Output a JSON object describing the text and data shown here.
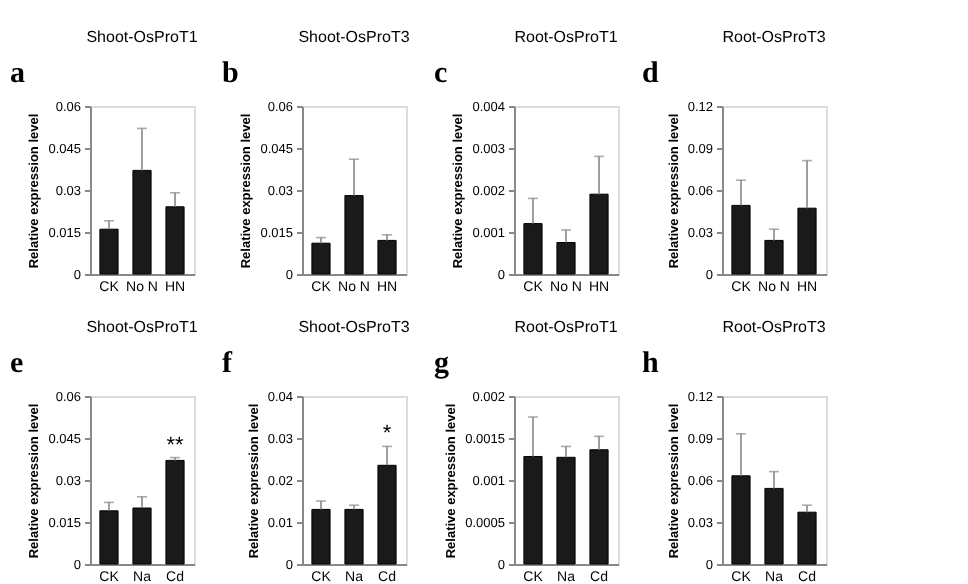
{
  "chart_data": [
    {
      "type": "bar",
      "title": "Shoot-OsProT1",
      "ylabel": "Relative expression level",
      "annotations": [
        "a"
      ],
      "categories": [
        "CK",
        "No N",
        "HN"
      ],
      "values": [
        0.016,
        0.037,
        0.024
      ],
      "errors": [
        [
          0.016,
          0.019
        ],
        [
          0.037,
          0.052
        ],
        [
          0.024,
          0.029
        ]
      ],
      "color": "#1a1a1a",
      "ylim": [
        0,
        0.06
      ],
      "yticks": [
        0,
        0.015,
        0.03,
        0.045,
        0.06
      ],
      "grid": false
    },
    {
      "type": "bar",
      "title": "Shoot-OsProT3",
      "ylabel": "Relative expression level",
      "annotations": [
        "b"
      ],
      "categories": [
        "CK",
        "No N",
        "HN"
      ],
      "values": [
        0.011,
        0.028,
        0.012
      ],
      "errors": [
        [
          0.011,
          0.013
        ],
        [
          0.028,
          0.041
        ],
        [
          0.012,
          0.014
        ]
      ],
      "color": "#1a1a1a",
      "ylim": [
        0,
        0.06
      ],
      "yticks": [
        0,
        0.015,
        0.03,
        0.045,
        0.06
      ],
      "grid": false
    },
    {
      "type": "bar",
      "title": "Root-OsProT1",
      "ylabel": "Relative expression level",
      "annotations": [
        "c"
      ],
      "categories": [
        "CK",
        "No N",
        "HN"
      ],
      "values": [
        0.0012,
        0.00075,
        0.0019
      ],
      "errors": [
        [
          0.0012,
          0.0018
        ],
        [
          0.00075,
          0.00105
        ],
        [
          0.0019,
          0.0028
        ]
      ],
      "color": "#1a1a1a",
      "ylim": [
        0,
        0.004
      ],
      "yticks": [
        0,
        0.001,
        0.002,
        0.003,
        0.004
      ],
      "grid": false
    },
    {
      "type": "bar",
      "title": "Root-OsProT3",
      "ylabel": "Relative expression level",
      "annotations": [
        "d"
      ],
      "categories": [
        "CK",
        "No N",
        "HN"
      ],
      "values": [
        0.049,
        0.024,
        0.047
      ],
      "errors": [
        [
          0.049,
          0.067
        ],
        [
          0.024,
          0.032
        ],
        [
          0.047,
          0.081
        ]
      ],
      "color": "#1a1a1a",
      "ylim": [
        0,
        0.12
      ],
      "yticks": [
        0,
        0.03,
        0.06,
        0.09,
        0.12
      ],
      "grid": false
    },
    {
      "type": "bar",
      "title": "Shoot-OsProT1",
      "ylabel": "Relative expression level",
      "annotations": [
        "e",
        {
          "text": "**",
          "x": "Cd",
          "y": 0.038
        }
      ],
      "categories": [
        "CK",
        "Na",
        "Cd"
      ],
      "values": [
        0.019,
        0.02,
        0.037
      ],
      "errors": [
        [
          0.019,
          0.022
        ],
        [
          0.02,
          0.024
        ],
        [
          0.037,
          0.038
        ]
      ],
      "color": "#1a1a1a",
      "ylim": [
        0,
        0.06
      ],
      "yticks": [
        0,
        0.015,
        0.03,
        0.045,
        0.06
      ],
      "grid": false
    },
    {
      "type": "bar",
      "title": "Shoot-OsProT3",
      "ylabel": "Relative expression level",
      "annotations": [
        "f",
        {
          "text": "*",
          "x": "Cd",
          "y": 0.028
        }
      ],
      "categories": [
        "CK",
        "Na",
        "Cd"
      ],
      "values": [
        0.013,
        0.013,
        0.0235
      ],
      "errors": [
        [
          0.013,
          0.015
        ],
        [
          0.013,
          0.014
        ],
        [
          0.0235,
          0.028
        ]
      ],
      "color": "#1a1a1a",
      "ylim": [
        0,
        0.04
      ],
      "yticks": [
        0,
        0.01,
        0.02,
        0.03,
        0.04
      ],
      "grid": false
    },
    {
      "type": "bar",
      "title": "Root-OsProT1",
      "ylabel": "Relative expression level",
      "annotations": [
        "g"
      ],
      "categories": [
        "CK",
        "Na",
        "Cd"
      ],
      "values": [
        0.00128,
        0.00127,
        0.00136
      ],
      "errors": [
        [
          0.00128,
          0.00175
        ],
        [
          0.00127,
          0.0014
        ],
        [
          0.00136,
          0.00152
        ]
      ],
      "color": "#1a1a1a",
      "ylim": [
        0,
        0.002
      ],
      "yticks": [
        0,
        0.0005,
        0.001,
        0.0015,
        0.002
      ],
      "grid": false
    },
    {
      "type": "bar",
      "title": "Root-OsProT3",
      "ylabel": "Relative expression level",
      "annotations": [
        "h"
      ],
      "categories": [
        "CK",
        "Na",
        "Cd"
      ],
      "values": [
        0.063,
        0.054,
        0.037
      ],
      "errors": [
        [
          0.063,
          0.093
        ],
        [
          0.054,
          0.066
        ],
        [
          0.037,
          0.042
        ]
      ],
      "color": "#1a1a1a",
      "ylim": [
        0,
        0.12
      ],
      "yticks": [
        0,
        0.03,
        0.06,
        0.09,
        0.12
      ],
      "grid": false
    }
  ]
}
